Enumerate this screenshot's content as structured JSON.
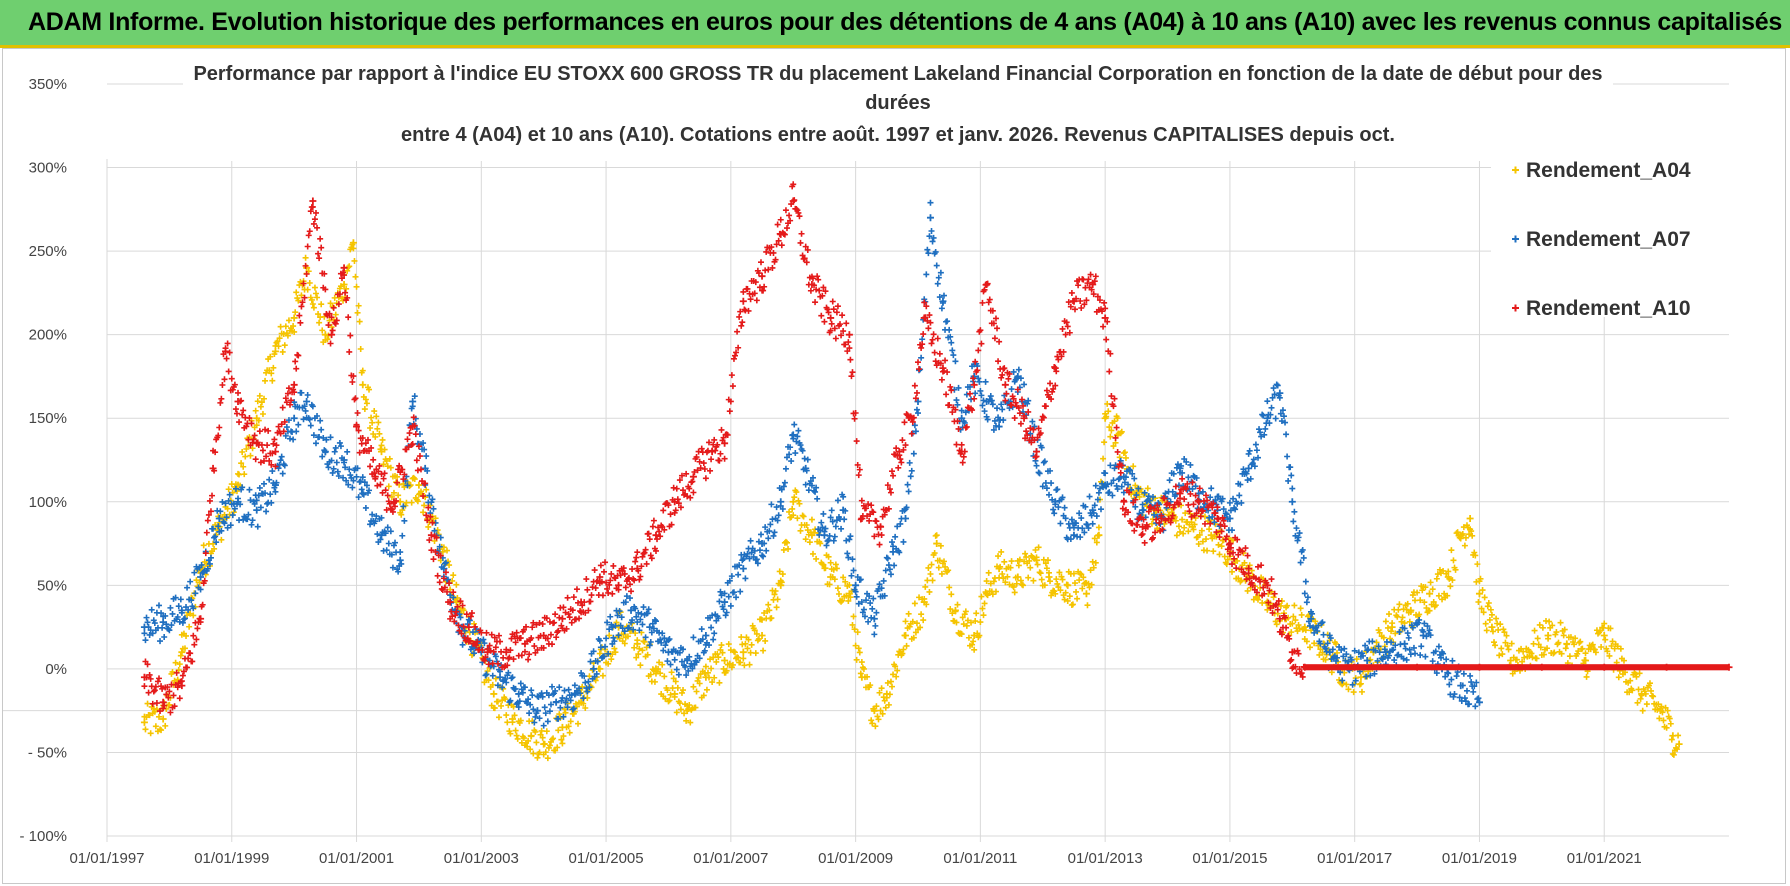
{
  "banner": {
    "title": "ADAM Informe. Evolution historique des performances en euros pour des détentions de 4 ans (A04) à 10 ans (A10) avec les revenus connus capitalisés"
  },
  "chart_data": {
    "type": "scatter",
    "title_lines": [
      "Performance par rapport à l'indice EU STOXX 600 GROSS TR  du placement Lakeland Financial Corporation en fonction de la date de début pour des",
      "durées",
      "entre 4 (A04) et 10 ans (A10).  Cotations entre août. 1997 et janv. 2026. Revenus CAPITALISES depuis oct."
    ],
    "xlabel": "",
    "ylabel": "",
    "x_range": [
      1997.0,
      2023.0
    ],
    "ylim": [
      -100,
      350
    ],
    "y_ticks": [
      -100,
      -50,
      0,
      50,
      100,
      150,
      200,
      250,
      300,
      350
    ],
    "y_tick_labels": [
      "- 100%",
      "- 50%",
      "0%",
      "50%",
      "100%",
      "150%",
      "200%",
      "250%",
      "300%",
      "350%"
    ],
    "x_ticks": [
      1997,
      1999,
      2001,
      2003,
      2005,
      2007,
      2009,
      2011,
      2013,
      2015,
      2017,
      2019,
      2021
    ],
    "x_tick_labels": [
      "01/01/1997",
      "01/01/1999",
      "01/01/2001",
      "01/01/2003",
      "01/01/2005",
      "01/01/2007",
      "01/01/2009",
      "01/01/2011",
      "01/01/2013",
      "01/01/2015",
      "01/01/2017",
      "01/01/2019",
      "01/01/2021"
    ],
    "marker": "+",
    "grid": true,
    "legend_position": "top-right",
    "series": [
      {
        "name": "Rendement_A04",
        "color": "#f5c400",
        "points": [
          [
            1997.6,
            -32
          ],
          [
            1997.9,
            -30
          ],
          [
            1998.2,
            10
          ],
          [
            1998.5,
            60
          ],
          [
            1998.8,
            85
          ],
          [
            1999.1,
            110
          ],
          [
            1999.4,
            150
          ],
          [
            1999.7,
            190
          ],
          [
            2000.0,
            210
          ],
          [
            2000.2,
            240
          ],
          [
            2000.5,
            200
          ],
          [
            2000.8,
            230
          ],
          [
            2000.95,
            255
          ],
          [
            2001.1,
            170
          ],
          [
            2001.4,
            130
          ],
          [
            2001.7,
            100
          ],
          [
            2002.0,
            110
          ],
          [
            2002.3,
            80
          ],
          [
            2002.6,
            40
          ],
          [
            2002.9,
            15
          ],
          [
            2003.2,
            -15
          ],
          [
            2003.5,
            -30
          ],
          [
            2003.8,
            -40
          ],
          [
            2004.0,
            -45
          ],
          [
            2004.3,
            -35
          ],
          [
            2004.6,
            -20
          ],
          [
            2004.9,
            0
          ],
          [
            2005.2,
            25
          ],
          [
            2005.5,
            15
          ],
          [
            2005.8,
            0
          ],
          [
            2006.1,
            -15
          ],
          [
            2006.3,
            -25
          ],
          [
            2006.6,
            -5
          ],
          [
            2006.9,
            5
          ],
          [
            2007.2,
            10
          ],
          [
            2007.5,
            20
          ],
          [
            2007.8,
            50
          ],
          [
            2008.0,
            100
          ],
          [
            2008.3,
            80
          ],
          [
            2008.6,
            55
          ],
          [
            2008.9,
            45
          ],
          [
            2009.1,
            -5
          ],
          [
            2009.3,
            -25
          ],
          [
            2009.5,
            -15
          ],
          [
            2009.8,
            20
          ],
          [
            2010.1,
            40
          ],
          [
            2010.3,
            75
          ],
          [
            2010.6,
            35
          ],
          [
            2010.9,
            20
          ],
          [
            2011.1,
            45
          ],
          [
            2011.3,
            60
          ],
          [
            2011.6,
            55
          ],
          [
            2011.9,
            65
          ],
          [
            2012.1,
            55
          ],
          [
            2012.4,
            50
          ],
          [
            2012.7,
            45
          ],
          [
            2012.9,
            80
          ],
          [
            2013.0,
            150
          ],
          [
            2013.2,
            140
          ],
          [
            2013.5,
            105
          ],
          [
            2013.8,
            95
          ],
          [
            2014.1,
            90
          ],
          [
            2014.4,
            85
          ],
          [
            2014.7,
            80
          ],
          [
            2015.0,
            70
          ],
          [
            2015.3,
            55
          ],
          [
            2015.6,
            40
          ],
          [
            2015.9,
            30
          ],
          [
            2016.2,
            25
          ],
          [
            2016.5,
            15
          ],
          [
            2016.8,
            0
          ],
          [
            2017.1,
            -5
          ],
          [
            2017.3,
            10
          ],
          [
            2017.6,
            25
          ],
          [
            2017.9,
            35
          ],
          [
            2018.2,
            45
          ],
          [
            2018.5,
            55
          ],
          [
            2018.7,
            80
          ],
          [
            2018.85,
            90
          ],
          [
            2019.0,
            45
          ],
          [
            2019.2,
            25
          ],
          [
            2019.5,
            5
          ],
          [
            2019.8,
            10
          ],
          [
            2020.1,
            20
          ],
          [
            2020.4,
            15
          ],
          [
            2020.7,
            5
          ],
          [
            2021.0,
            20
          ],
          [
            2021.3,
            0
          ],
          [
            2021.6,
            -15
          ],
          [
            2021.9,
            -25
          ],
          [
            2022.1,
            -40
          ],
          [
            2022.2,
            -45
          ]
        ]
      },
      {
        "name": "Rendement_A07",
        "color": "#1f6fc0",
        "points": [
          [
            1997.6,
            25
          ],
          [
            1997.9,
            28
          ],
          [
            1998.2,
            35
          ],
          [
            1998.5,
            55
          ],
          [
            1998.8,
            90
          ],
          [
            1999.1,
            100
          ],
          [
            1999.4,
            95
          ],
          [
            1999.7,
            110
          ],
          [
            2000.0,
            150
          ],
          [
            2000.2,
            160
          ],
          [
            2000.5,
            130
          ],
          [
            2000.8,
            125
          ],
          [
            2001.1,
            105
          ],
          [
            2001.4,
            80
          ],
          [
            2001.7,
            65
          ],
          [
            2001.9,
            160
          ],
          [
            2002.1,
            120
          ],
          [
            2002.4,
            60
          ],
          [
            2002.7,
            25
          ],
          [
            2003.0,
            10
          ],
          [
            2003.3,
            -5
          ],
          [
            2003.6,
            -15
          ],
          [
            2003.9,
            -25
          ],
          [
            2004.2,
            -20
          ],
          [
            2004.5,
            -15
          ],
          [
            2004.8,
            0
          ],
          [
            2005.1,
            25
          ],
          [
            2005.4,
            35
          ],
          [
            2005.7,
            25
          ],
          [
            2006.0,
            10
          ],
          [
            2006.3,
            5
          ],
          [
            2006.6,
            20
          ],
          [
            2006.9,
            40
          ],
          [
            2007.2,
            60
          ],
          [
            2007.5,
            75
          ],
          [
            2007.8,
            100
          ],
          [
            2008.0,
            140
          ],
          [
            2008.2,
            120
          ],
          [
            2008.5,
            80
          ],
          [
            2008.8,
            95
          ],
          [
            2009.0,
            50
          ],
          [
            2009.3,
            30
          ],
          [
            2009.6,
            70
          ],
          [
            2009.8,
            90
          ],
          [
            2010.0,
            160
          ],
          [
            2010.2,
            270
          ],
          [
            2010.4,
            220
          ],
          [
            2010.7,
            150
          ],
          [
            2010.9,
            175
          ],
          [
            2011.1,
            160
          ],
          [
            2011.3,
            145
          ],
          [
            2011.6,
            175
          ],
          [
            2011.9,
            130
          ],
          [
            2012.2,
            100
          ],
          [
            2012.5,
            80
          ],
          [
            2012.8,
            95
          ],
          [
            2013.0,
            110
          ],
          [
            2013.3,
            115
          ],
          [
            2013.6,
            95
          ],
          [
            2013.9,
            90
          ],
          [
            2014.2,
            120
          ],
          [
            2014.5,
            105
          ],
          [
            2014.8,
            95
          ],
          [
            2015.0,
            90
          ],
          [
            2015.3,
            120
          ],
          [
            2015.6,
            150
          ],
          [
            2015.8,
            165
          ],
          [
            2016.0,
            100
          ],
          [
            2016.3,
            30
          ],
          [
            2016.6,
            10
          ],
          [
            2016.9,
            0
          ],
          [
            2017.2,
            5
          ],
          [
            2017.5,
            10
          ],
          [
            2017.8,
            15
          ],
          [
            2018.1,
            20
          ],
          [
            2018.4,
            0
          ],
          [
            2018.7,
            -10
          ],
          [
            2019.0,
            -20
          ]
        ]
      },
      {
        "name": "Rendement_A10",
        "color": "#e41a1a",
        "points": [
          [
            1997.6,
            -5
          ],
          [
            1997.9,
            -20
          ],
          [
            1998.2,
            -10
          ],
          [
            1998.5,
            30
          ],
          [
            1998.7,
            120
          ],
          [
            1998.9,
            190
          ],
          [
            1999.1,
            160
          ],
          [
            1999.4,
            135
          ],
          [
            1999.7,
            130
          ],
          [
            2000.0,
            170
          ],
          [
            2000.3,
            280
          ],
          [
            2000.6,
            200
          ],
          [
            2000.8,
            240
          ],
          [
            2001.0,
            145
          ],
          [
            2001.3,
            115
          ],
          [
            2001.6,
            100
          ],
          [
            2001.9,
            145
          ],
          [
            2002.2,
            80
          ],
          [
            2002.5,
            40
          ],
          [
            2002.8,
            25
          ],
          [
            2003.1,
            10
          ],
          [
            2003.4,
            10
          ],
          [
            2003.7,
            15
          ],
          [
            2004.0,
            20
          ],
          [
            2004.3,
            30
          ],
          [
            2004.6,
            40
          ],
          [
            2004.9,
            55
          ],
          [
            2005.2,
            50
          ],
          [
            2005.5,
            60
          ],
          [
            2005.8,
            80
          ],
          [
            2006.1,
            100
          ],
          [
            2006.4,
            115
          ],
          [
            2006.7,
            130
          ],
          [
            2006.9,
            135
          ],
          [
            2007.2,
            220
          ],
          [
            2007.5,
            235
          ],
          [
            2007.8,
            260
          ],
          [
            2008.0,
            280
          ],
          [
            2008.3,
            230
          ],
          [
            2008.6,
            210
          ],
          [
            2008.9,
            200
          ],
          [
            2009.1,
            90
          ],
          [
            2009.4,
            85
          ],
          [
            2009.7,
            130
          ],
          [
            2009.9,
            150
          ],
          [
            2010.1,
            210
          ],
          [
            2010.4,
            180
          ],
          [
            2010.7,
            130
          ],
          [
            2010.9,
            170
          ],
          [
            2011.1,
            230
          ],
          [
            2011.4,
            170
          ],
          [
            2011.7,
            150
          ],
          [
            2011.9,
            130
          ],
          [
            2012.2,
            180
          ],
          [
            2012.5,
            220
          ],
          [
            2012.8,
            230
          ],
          [
            2013.0,
            210
          ],
          [
            2013.3,
            100
          ],
          [
            2013.6,
            85
          ],
          [
            2013.9,
            90
          ],
          [
            2014.2,
            105
          ],
          [
            2014.5,
            100
          ],
          [
            2014.8,
            90
          ],
          [
            2015.0,
            75
          ],
          [
            2015.3,
            60
          ],
          [
            2015.6,
            50
          ],
          [
            2015.8,
            30
          ],
          [
            2016.0,
            10
          ],
          [
            2016.2,
            1
          ],
          [
            2017.0,
            1
          ],
          [
            2018.0,
            1
          ],
          [
            2019.0,
            1
          ],
          [
            2020.0,
            1
          ],
          [
            2021.0,
            1
          ],
          [
            2022.0,
            1
          ],
          [
            2023.0,
            1
          ]
        ]
      }
    ]
  }
}
